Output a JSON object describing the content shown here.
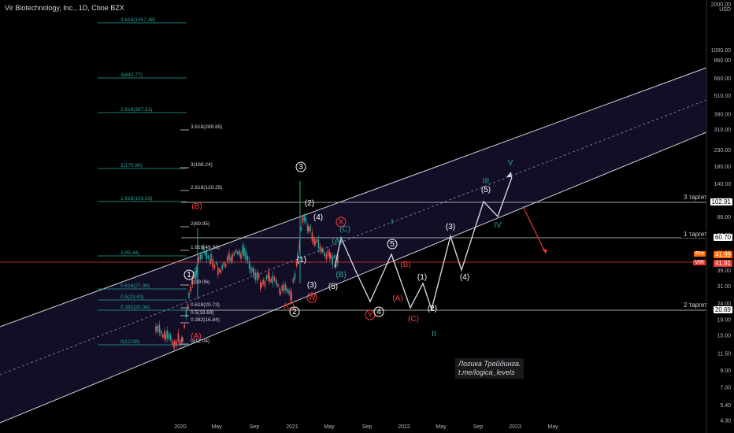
{
  "header": {
    "title": "Vir Biotechnology, Inc., 1D, Cboe BZX"
  },
  "colors": {
    "background": "#000000",
    "channel_line": "#d1d4dc",
    "channel_fill": "#14102a",
    "red": "#ff3b3b",
    "green": "#26a69a",
    "wave_white": "#ffffff"
  },
  "targets": [
    {
      "label": "3 таргет",
      "value": "102.91"
    },
    {
      "label": "1 таргет",
      "value": "60.70"
    },
    {
      "label": "2 таргет",
      "value": "20.69"
    }
  ],
  "current_price": {
    "a": "41.99",
    "b": "41.91",
    "prefix_a": "Pre",
    "prefix_b": "VIR"
  },
  "brand": {
    "line1": "Логика Трейдинга.",
    "line2": "t.me/logica_levels"
  },
  "chart_data": {
    "type": "line",
    "title": "Vir Biotechnology, Inc., 1D, Cboe BZX",
    "currency": "USD",
    "yscale": "log",
    "y_ticks": [
      "2000.00",
      "1000.00",
      "860.00",
      "660.00",
      "510.00",
      "390.00",
      "310.00",
      "230.00",
      "180.00",
      "140.00",
      "110.00",
      "86.00",
      "66.00",
      "51.00",
      "39.00",
      "31.00",
      "24.00",
      "19.00",
      "15.00",
      "11.50",
      "9.00",
      "7.00",
      "5.40",
      "4.30"
    ],
    "x_ticks": [
      "2020",
      "May",
      "Sep",
      "2021",
      "May",
      "Sep",
      "2022",
      "May",
      "Sep",
      "2023",
      "May"
    ],
    "fib_left": [
      {
        "label": "3.618(1457.48)",
        "value": 1457.48
      },
      {
        "label": "3(642.77)",
        "value": 642.77
      },
      {
        "label": "2.618(387.51)",
        "value": 387.51
      },
      {
        "label": "2(170.90)",
        "value": 170.9
      },
      {
        "label": "1.618(103.03)",
        "value": 103.03
      },
      {
        "label": "1(45.44)",
        "value": 45.44
      },
      {
        "label": "0.618(27.39)",
        "value": 27.39
      },
      {
        "label": "0.5(23.43)",
        "value": 23.43
      },
      {
        "label": "0.382(20.04)",
        "value": 20.04
      },
      {
        "label": "0(12.08)",
        "value": 12.08
      }
    ],
    "fib_right": [
      {
        "label": "3.618(289.65)",
        "value": 289.65
      },
      {
        "label": "3(168.24)",
        "value": 168.24
      },
      {
        "label": "2.618(120.25)",
        "value": 120.25
      },
      {
        "label": "2(69.85)",
        "value": 69.85
      },
      {
        "label": "1.618(49.93)",
        "value": 49.93
      },
      {
        "label": "1(29.06)",
        "value": 29.06
      },
      {
        "label": "0.618(20.73)",
        "value": 20.73
      },
      {
        "label": "0.5(18.69)",
        "value": 18.69
      },
      {
        "label": "0.382(16.84)",
        "value": 16.84
      },
      {
        "label": "0(12.04)",
        "value": 12.04
      }
    ],
    "wave_labels": [
      {
        "t": "(B)",
        "c": "red"
      },
      {
        "t": "(A)",
        "c": "red"
      },
      {
        "t": "1",
        "c": "white",
        "circle": true
      },
      {
        "t": "(2)",
        "c": "white"
      },
      {
        "t": "3",
        "c": "white",
        "circle": true
      },
      {
        "t": "(4)",
        "c": "white"
      },
      {
        "t": "(1)",
        "c": "white"
      },
      {
        "t": "(3)",
        "c": "white"
      },
      {
        "t": "(5)",
        "c": "white"
      },
      {
        "t": "(C)",
        "c": "red"
      },
      {
        "t": "2",
        "c": "white",
        "circle": true
      },
      {
        "t": "W",
        "c": "red",
        "circle": true
      },
      {
        "t": "X",
        "c": "red",
        "circle": true
      },
      {
        "t": "(A)",
        "c": "green"
      },
      {
        "t": "(B)",
        "c": "green"
      },
      {
        "t": "(C)",
        "c": "green"
      },
      {
        "t": "I",
        "c": "green"
      },
      {
        "t": "5",
        "c": "white",
        "circle": true
      },
      {
        "t": "Y",
        "c": "red",
        "circle": true
      },
      {
        "t": "4",
        "c": "white",
        "circle": true
      },
      {
        "t": "(B)",
        "c": "red"
      },
      {
        "t": "(A)",
        "c": "red"
      },
      {
        "t": "(C)",
        "c": "red"
      },
      {
        "t": "(1)",
        "c": "white"
      },
      {
        "t": "(2)",
        "c": "white"
      },
      {
        "t": "II",
        "c": "green"
      },
      {
        "t": "(3)",
        "c": "white"
      },
      {
        "t": "(4)",
        "c": "white"
      },
      {
        "t": "(5)",
        "c": "white"
      },
      {
        "t": "III",
        "c": "green"
      },
      {
        "t": "IV",
        "c": "green"
      },
      {
        "t": "V",
        "c": "green"
      }
    ]
  }
}
